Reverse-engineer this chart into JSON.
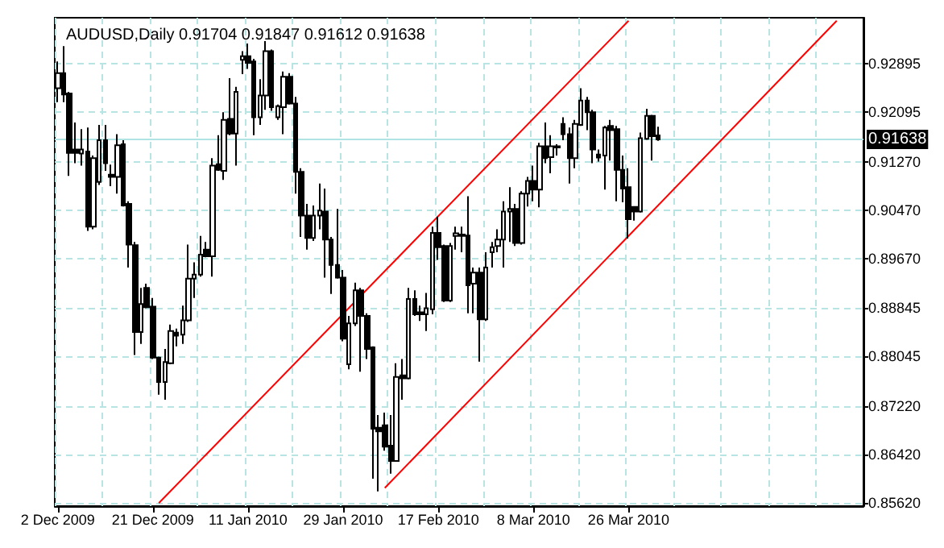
{
  "chart_data": {
    "type": "candlestick",
    "title": "AUDUSD,Daily 0.91704 0.91847 0.91612 0.91638",
    "categories": [
      "2 Dec 2009",
      null,
      null,
      null,
      null,
      null,
      null,
      null,
      null,
      null,
      null,
      null,
      null,
      null,
      null,
      null,
      "21 Dec 2009",
      null,
      null,
      null,
      null,
      null,
      null,
      null,
      null,
      null,
      null,
      null,
      null,
      null,
      null,
      null,
      "11 Jan 2010",
      null,
      null,
      null,
      null,
      null,
      null,
      null,
      null,
      null,
      null,
      null,
      null,
      null,
      null,
      null,
      "29 Jan 2010",
      null,
      null,
      null,
      null,
      null,
      null,
      null,
      null,
      null,
      null,
      null,
      null,
      null,
      null,
      null,
      "17 Feb 2010",
      null,
      null,
      null,
      null,
      null,
      null,
      null,
      null,
      null,
      null,
      null,
      null,
      null,
      null,
      null,
      "8 Mar 2010",
      null,
      null,
      null,
      null,
      null,
      null,
      null,
      null,
      null,
      null,
      null,
      null,
      null,
      null,
      null,
      "26 Mar 2010",
      null,
      null,
      null,
      null,
      null,
      null,
      null,
      null,
      null,
      null,
      null,
      null,
      null,
      null,
      null,
      null,
      null,
      null,
      null,
      null,
      null,
      null,
      null,
      null,
      null,
      null,
      null,
      null,
      null,
      null,
      null,
      null,
      null,
      null,
      null,
      null,
      null,
      null,
      null
    ],
    "ohlc": [
      [
        0.92482,
        0.92928,
        0.92255,
        0.92734
      ],
      [
        0.92734,
        0.93181,
        0.92255,
        0.92381
      ],
      [
        0.92398,
        0.92423,
        0.91034,
        0.91413
      ],
      [
        0.91471,
        0.91918,
        0.91244,
        0.91413
      ],
      [
        0.91404,
        0.91808,
        0.91202,
        0.91471
      ],
      [
        0.91438,
        0.91834,
        0.90124,
        0.90192
      ],
      [
        0.90192,
        0.9137,
        0.9015,
        0.91328
      ],
      [
        0.90933,
        0.91876,
        0.90882,
        0.91623
      ],
      [
        0.91623,
        0.91876,
        0.91118,
        0.91244
      ],
      [
        0.91052,
        0.91219,
        0.90865,
        0.91017
      ],
      [
        0.91017,
        0.91724,
        0.90739,
        0.91539
      ],
      [
        0.91556,
        0.91623,
        0.90528,
        0.90545
      ],
      [
        0.90571,
        0.90613,
        0.89518,
        0.89897
      ],
      [
        0.89888,
        0.89939,
        0.8807,
        0.88449
      ],
      [
        0.88449,
        0.89181,
        0.88255,
        0.88912
      ],
      [
        0.89181,
        0.89249,
        0.88844,
        0.88861
      ],
      [
        0.8887,
        0.89013,
        0.88002,
        0.88028
      ],
      [
        0.88028,
        0.88045,
        0.87413,
        0.87624
      ],
      [
        0.87624,
        0.88171,
        0.87329,
        0.87952
      ],
      [
        0.87935,
        0.88575,
        0.87918,
        0.88466
      ],
      [
        0.8844,
        0.88508,
        0.88213,
        0.8839
      ],
      [
        0.88407,
        0.88887,
        0.88255,
        0.88642
      ],
      [
        0.88642,
        0.89897,
        0.88617,
        0.89333
      ],
      [
        0.89333,
        0.89602,
        0.89013,
        0.894
      ],
      [
        0.894,
        0.9004,
        0.89366,
        0.89729
      ],
      [
        0.89813,
        0.89939,
        0.89686,
        0.89703
      ],
      [
        0.89703,
        0.91328,
        0.89366,
        0.91202
      ],
      [
        0.91227,
        0.91707,
        0.91118,
        0.91135
      ],
      [
        0.91118,
        0.92086,
        0.90966,
        0.9196
      ],
      [
        0.91977,
        0.9265,
        0.91707,
        0.91732
      ],
      [
        0.91732,
        0.92507,
        0.91202,
        0.92423
      ],
      [
        0.92953,
        0.93097,
        0.92718,
        0.93012
      ],
      [
        0.93012,
        0.93223,
        0.92802,
        0.92903
      ],
      [
        0.92928,
        0.9297,
        0.91707,
        0.92002
      ],
      [
        0.92002,
        0.92633,
        0.91876,
        0.92364
      ],
      [
        0.92364,
        0.93265,
        0.92128,
        0.93097
      ],
      [
        0.93097,
        0.93122,
        0.92111,
        0.9217
      ],
      [
        0.92002,
        0.92212,
        0.9196,
        0.92187
      ],
      [
        0.9217,
        0.9276,
        0.91724,
        0.92675
      ],
      [
        0.92675,
        0.92734,
        0.92212,
        0.92229
      ],
      [
        0.92229,
        0.92339,
        0.90739,
        0.91101
      ],
      [
        0.91101,
        0.9116,
        0.90023,
        0.90377
      ],
      [
        0.90377,
        0.90571,
        0.89813,
        0.90006
      ],
      [
        0.90006,
        0.90545,
        0.89956,
        0.90377
      ],
      [
        0.90377,
        0.90907,
        0.9015,
        0.90461
      ],
      [
        0.90444,
        0.90823,
        0.8935,
        0.89981
      ],
      [
        0.89981,
        0.90023,
        0.8908,
        0.8956
      ],
      [
        0.8956,
        0.90486,
        0.89333,
        0.8935
      ],
      [
        0.8935,
        0.89476,
        0.88297,
        0.88339
      ],
      [
        0.87918,
        0.88718,
        0.87834,
        0.88592
      ],
      [
        0.88592,
        0.89266,
        0.8855,
        0.89139
      ],
      [
        0.89139,
        0.89181,
        0.87792,
        0.88718
      ],
      [
        0.88718,
        0.8876,
        0.88002,
        0.88171
      ],
      [
        0.88196,
        0.88213,
        0.86024,
        0.86849
      ],
      [
        0.86866,
        0.87076,
        0.85813,
        0.86807
      ],
      [
        0.86908,
        0.87118,
        0.86487,
        0.86554
      ],
      [
        0.86571,
        0.87076,
        0.86108,
        0.86318
      ],
      [
        0.86318,
        0.87935,
        0.86302,
        0.87708
      ],
      [
        0.87733,
        0.88002,
        0.87329,
        0.87682
      ],
      [
        0.87682,
        0.89181,
        0.87666,
        0.88996
      ],
      [
        0.88996,
        0.89139,
        0.88718,
        0.88743
      ],
      [
        0.88777,
        0.88887,
        0.88634,
        0.88743
      ],
      [
        0.88743,
        0.89097,
        0.88466,
        0.88844
      ],
      [
        0.88828,
        0.90192,
        0.88743,
        0.90091
      ],
      [
        0.90091,
        0.9036,
        0.89644,
        0.89855
      ],
      [
        0.89872,
        0.89897,
        0.88946,
        0.88971
      ],
      [
        0.88971,
        0.89922,
        0.88946,
        0.89872
      ],
      [
        0.9004,
        0.90192,
        0.89813,
        0.90082
      ],
      [
        0.90065,
        0.90192,
        0.89771,
        0.9004
      ],
      [
        0.90048,
        0.90696,
        0.8876,
        0.89223
      ],
      [
        0.89249,
        0.89518,
        0.8876,
        0.89434
      ],
      [
        0.89434,
        0.89518,
        0.8796,
        0.88659
      ],
      [
        0.88659,
        0.89771,
        0.88634,
        0.89518
      ],
      [
        0.89771,
        0.89939,
        0.89518,
        0.89855
      ],
      [
        0.89872,
        0.9015,
        0.89771,
        0.89981
      ],
      [
        0.89981,
        0.90613,
        0.89518,
        0.90444
      ],
      [
        0.90444,
        0.90848,
        0.89939,
        0.90486
      ],
      [
        0.90486,
        0.90571,
        0.89872,
        0.89922
      ],
      [
        0.89922,
        0.90781,
        0.89897,
        0.90739
      ],
      [
        0.90739,
        0.91017,
        0.90528,
        0.9095
      ],
      [
        0.9095,
        0.91202,
        0.90613,
        0.90806
      ],
      [
        0.90806,
        0.91581,
        0.90512,
        0.91522
      ],
      [
        0.91522,
        0.91918,
        0.91244,
        0.91328
      ],
      [
        0.91345,
        0.91707,
        0.91076,
        0.91522
      ],
      [
        0.91522,
        0.91556,
        0.9137,
        0.91505
      ],
      [
        0.91892,
        0.92002,
        0.91623,
        0.91724
      ],
      [
        0.91724,
        0.91834,
        0.90907,
        0.91328
      ],
      [
        0.91328,
        0.9196,
        0.9116,
        0.91892
      ],
      [
        0.91876,
        0.92482,
        0.91859,
        0.9228
      ],
      [
        0.9228,
        0.92339,
        0.91791,
        0.92086
      ],
      [
        0.92086,
        0.92128,
        0.91244,
        0.91471
      ],
      [
        0.91387,
        0.91471,
        0.91269,
        0.91337
      ],
      [
        0.9137,
        0.91859,
        0.90806,
        0.91834
      ],
      [
        0.91859,
        0.9196,
        0.91286,
        0.91791
      ],
      [
        0.91808,
        0.91859,
        0.90613,
        0.91135
      ],
      [
        0.91135,
        0.9137,
        0.90596,
        0.90823
      ],
      [
        0.90848,
        0.9116,
        0.89998,
        0.90318
      ],
      [
        0.9052,
        0.90528,
        0.90293,
        0.90444
      ],
      [
        0.90444,
        0.91749,
        0.90427,
        0.91657
      ],
      [
        0.91648,
        0.92145,
        0.91631,
        0.92027
      ],
      [
        0.92027,
        0.92044,
        0.91286,
        0.9169
      ],
      [
        0.91704,
        0.91847,
        0.91612,
        0.91638
      ],
      null,
      null,
      null,
      null,
      null,
      null,
      null,
      null,
      null,
      null,
      null,
      null,
      null,
      null,
      null,
      null,
      null,
      null,
      null,
      null,
      null,
      null,
      null,
      null,
      null,
      null,
      null,
      null,
      null,
      null,
      null,
      null,
      null,
      null
    ],
    "series": [
      {
        "type": "line",
        "color": "#ff0000",
        "values": [
          null,
          null,
          null,
          null,
          null,
          null,
          null,
          null,
          null,
          null,
          null,
          null,
          null,
          null,
          null,
          null,
          null,
          0.8562,
          null,
          null,
          null,
          null,
          null,
          null,
          null,
          null,
          null,
          null,
          null,
          null,
          null,
          null,
          null,
          null,
          null,
          null,
          null,
          null,
          null,
          null,
          null,
          null,
          null,
          null,
          null,
          null,
          null,
          null,
          null,
          null,
          null,
          null,
          null,
          null,
          null,
          null,
          null,
          null,
          null,
          null,
          null,
          null,
          null,
          null,
          null,
          null,
          null,
          null,
          null,
          null,
          null,
          null,
          null,
          null,
          null,
          null,
          null,
          null,
          null,
          null,
          null,
          null,
          null,
          null,
          null,
          null,
          null,
          null,
          null,
          null,
          null,
          null,
          null,
          null,
          null,
          null,
          0.936,
          null,
          null,
          null,
          null,
          null,
          null,
          null,
          null,
          null,
          null,
          null,
          null,
          null,
          null,
          null,
          null,
          null,
          null,
          null,
          null,
          null,
          null,
          null,
          null,
          null,
          null,
          null,
          null,
          null,
          null,
          null,
          null,
          null,
          null,
          null,
          null,
          null,
          null,
          null
        ]
      },
      {
        "type": "line",
        "color": "#ff0000",
        "values": [
          null,
          null,
          null,
          null,
          null,
          null,
          null,
          null,
          null,
          null,
          null,
          null,
          null,
          null,
          null,
          null,
          null,
          null,
          null,
          null,
          null,
          null,
          null,
          null,
          null,
          null,
          null,
          null,
          null,
          null,
          null,
          null,
          null,
          null,
          null,
          null,
          null,
          null,
          null,
          null,
          null,
          null,
          null,
          null,
          null,
          null,
          null,
          null,
          null,
          null,
          null,
          null,
          null,
          null,
          null,
          0.8587,
          null,
          null,
          null,
          null,
          null,
          null,
          null,
          null,
          null,
          null,
          null,
          null,
          null,
          null,
          null,
          null,
          null,
          null,
          null,
          null,
          null,
          null,
          null,
          null,
          null,
          null,
          null,
          null,
          null,
          null,
          null,
          null,
          null,
          null,
          null,
          null,
          null,
          null,
          null,
          null,
          null,
          null,
          null,
          null,
          null,
          null,
          null,
          null,
          null,
          null,
          null,
          null,
          null,
          null,
          null,
          null,
          null,
          null,
          null,
          null,
          null,
          null,
          null,
          null,
          null,
          null,
          null,
          null,
          null,
          null,
          null,
          null,
          null,
          null,
          null,
          0.936,
          null,
          null,
          null,
          null
        ]
      }
    ],
    "ylim": [
      0.8557,
      0.9365
    ],
    "yticks": [
      {
        "value": 0.8562,
        "label": "0.85620"
      },
      {
        "value": 0.8642,
        "label": "0.86420"
      },
      {
        "value": 0.8722,
        "label": "0.87220"
      },
      0.88045,
      0.88845,
      {
        "value": 0.8967,
        "label": "0.89670"
      },
      {
        "value": 0.9047,
        "label": "0.90470"
      },
      {
        "value": 0.9127,
        "label": "0.91270"
      },
      0.92095,
      0.92895
    ],
    "ref_lines": [
      {
        "axis": "y",
        "value": 0.91638,
        "label": "0.91638",
        "color": "#b0e4e4"
      }
    ],
    "grid": true
  }
}
